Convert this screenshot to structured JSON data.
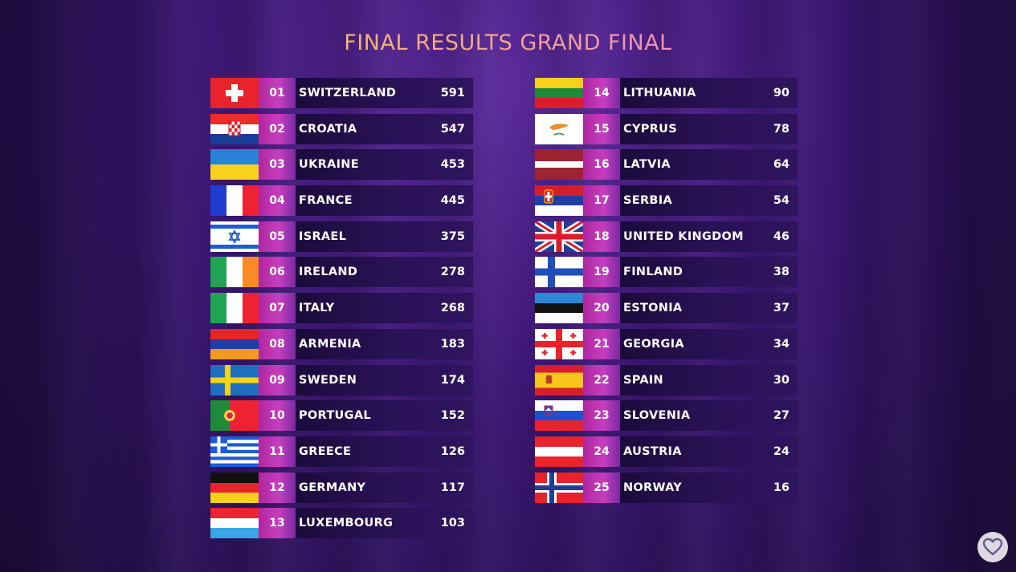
{
  "title": "FINAL RESULTS GRAND FINAL",
  "results": [
    {
      "rank": "01",
      "country": "SWITZERLAND",
      "points": "591",
      "flag": "switzerland"
    },
    {
      "rank": "02",
      "country": "CROATIA",
      "points": "547",
      "flag": "croatia"
    },
    {
      "rank": "03",
      "country": "UKRAINE",
      "points": "453",
      "flag": "ukraine"
    },
    {
      "rank": "04",
      "country": "FRANCE",
      "points": "445",
      "flag": "france"
    },
    {
      "rank": "05",
      "country": "ISRAEL",
      "points": "375",
      "flag": "israel"
    },
    {
      "rank": "06",
      "country": "IRELAND",
      "points": "278",
      "flag": "ireland"
    },
    {
      "rank": "07",
      "country": "ITALY",
      "points": "268",
      "flag": "italy"
    },
    {
      "rank": "08",
      "country": "ARMENIA",
      "points": "183",
      "flag": "armenia"
    },
    {
      "rank": "09",
      "country": "SWEDEN",
      "points": "174",
      "flag": "sweden"
    },
    {
      "rank": "10",
      "country": "PORTUGAL",
      "points": "152",
      "flag": "portugal"
    },
    {
      "rank": "11",
      "country": "GREECE",
      "points": "126",
      "flag": "greece"
    },
    {
      "rank": "12",
      "country": "GERMANY",
      "points": "117",
      "flag": "germany"
    },
    {
      "rank": "13",
      "country": "LUXEMBOURG",
      "points": "103",
      "flag": "luxembourg"
    },
    {
      "rank": "14",
      "country": "LITHUANIA",
      "points": "90",
      "flag": "lithuania"
    },
    {
      "rank": "15",
      "country": "CYPRUS",
      "points": "78",
      "flag": "cyprus"
    },
    {
      "rank": "16",
      "country": "LATVIA",
      "points": "64",
      "flag": "latvia"
    },
    {
      "rank": "17",
      "country": "SERBIA",
      "points": "54",
      "flag": "serbia"
    },
    {
      "rank": "18",
      "country": "UNITED KINGDOM",
      "points": "46",
      "flag": "united-kingdom"
    },
    {
      "rank": "19",
      "country": "FINLAND",
      "points": "38",
      "flag": "finland"
    },
    {
      "rank": "20",
      "country": "ESTONIA",
      "points": "37",
      "flag": "estonia"
    },
    {
      "rank": "21",
      "country": "GEORGIA",
      "points": "34",
      "flag": "georgia"
    },
    {
      "rank": "22",
      "country": "SPAIN",
      "points": "30",
      "flag": "spain"
    },
    {
      "rank": "23",
      "country": "SLOVENIA",
      "points": "27",
      "flag": "slovenia"
    },
    {
      "rank": "24",
      "country": "AUSTRIA",
      "points": "24",
      "flag": "austria"
    },
    {
      "rank": "25",
      "country": "NORWAY",
      "points": "16",
      "flag": "norway"
    }
  ],
  "favorite_icon": "heart-icon"
}
